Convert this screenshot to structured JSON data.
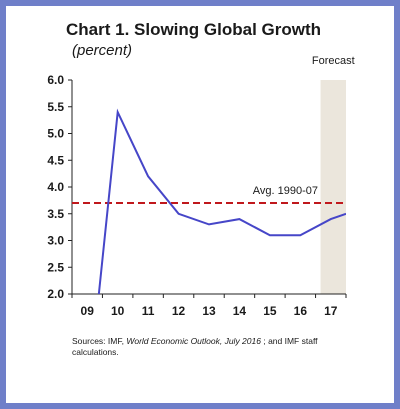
{
  "title": "Chart 1. Slowing Global Growth",
  "subtitle": "(percent)",
  "forecast_label": "Forecast",
  "source": {
    "prefix": "Sources: IMF, ",
    "publication": "World Economic Outlook, July 2016",
    "suffix": " ; and IMF staff calculations."
  },
  "colors": {
    "frame": "#6f7fc9",
    "line": "#4646c8",
    "average": "#c0181c",
    "forecast_shade": "#ebe6dc"
  },
  "chart_data": {
    "type": "line",
    "categories": [
      "09",
      "10",
      "11",
      "12",
      "13",
      "14",
      "15",
      "16",
      "17"
    ],
    "series": [
      {
        "values": [
          -0.1,
          5.4,
          4.2,
          3.5,
          3.3,
          3.4,
          3.1,
          3.1,
          3.4
        ]
      }
    ],
    "last_point": 3.5,
    "forecast_start_category": "16",
    "reference_line": {
      "label": "Avg. 1990-07",
      "value": 3.7
    },
    "ylim": [
      2.0,
      6.0
    ],
    "yticks": [
      2.0,
      2.5,
      3.0,
      3.5,
      4.0,
      4.5,
      5.0,
      5.5,
      6.0
    ],
    "grid": false,
    "legend": "none"
  }
}
